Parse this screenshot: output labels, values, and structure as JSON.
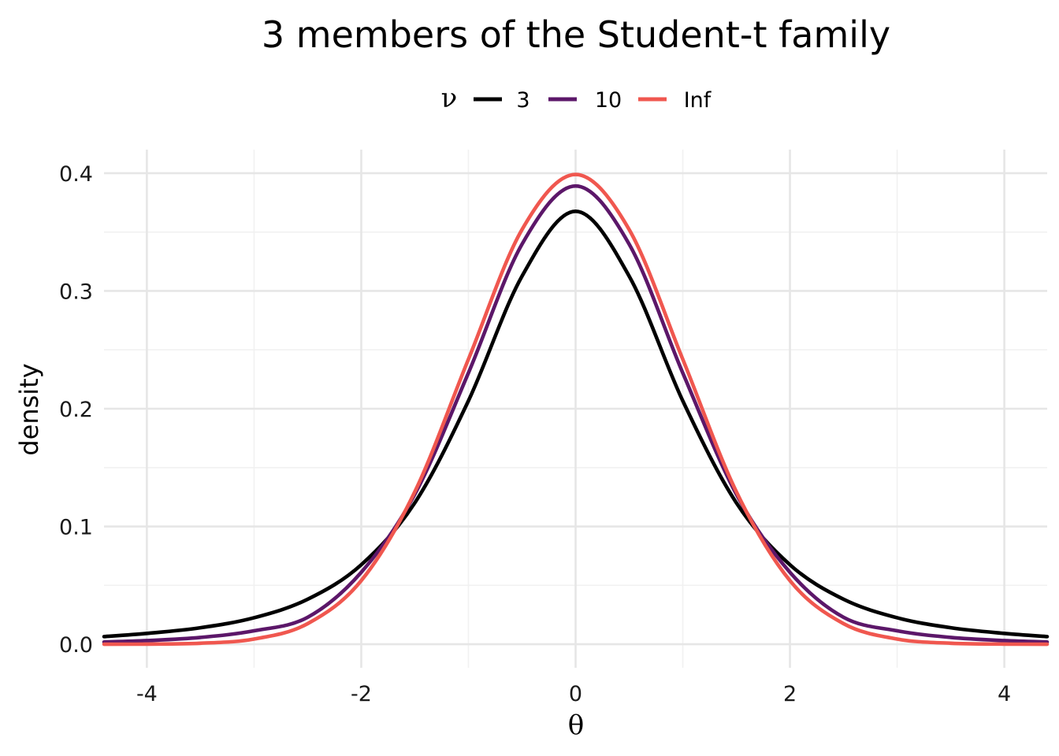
{
  "chart_data": {
    "type": "line",
    "title": "3 members of the Student-t family",
    "xlabel": "θ",
    "ylabel": "density",
    "xlim": [
      -4.4,
      4.4
    ],
    "ylim": [
      -0.02,
      0.42
    ],
    "x_ticks": [
      -4,
      -2,
      0,
      2,
      4
    ],
    "x_tick_labels": [
      "-4",
      "-2",
      "0",
      "2",
      "4"
    ],
    "y_ticks": [
      0.0,
      0.1,
      0.2,
      0.3,
      0.4
    ],
    "y_tick_labels": [
      "0.0",
      "0.1",
      "0.2",
      "0.3",
      "0.4"
    ],
    "grid": true,
    "legend": {
      "title": "ν",
      "placement": "top"
    },
    "series": [
      {
        "name": "3",
        "color": "#000000",
        "x": [
          -4.4,
          -4.0,
          -3.5,
          -3.0,
          -2.5,
          -2.0,
          -1.5,
          -1.0,
          -0.5,
          0.0,
          0.5,
          1.0,
          1.5,
          2.0,
          2.5,
          3.0,
          3.5,
          4.0,
          4.4
        ],
        "values": [
          0.0065,
          0.0092,
          0.014,
          0.0225,
          0.0382,
          0.0675,
          0.1201,
          0.2067,
          0.3125,
          0.3676,
          0.3125,
          0.2067,
          0.1201,
          0.0675,
          0.0382,
          0.0225,
          0.014,
          0.0092,
          0.0065
        ]
      },
      {
        "name": "10",
        "color": "#5c1769",
        "x": [
          -4.4,
          -4.0,
          -3.5,
          -3.0,
          -2.5,
          -2.0,
          -1.5,
          -1.0,
          -0.5,
          0.0,
          0.5,
          1.0,
          1.5,
          2.0,
          2.5,
          3.0,
          3.5,
          4.0,
          4.4
        ],
        "values": [
          0.0019,
          0.0031,
          0.0058,
          0.0114,
          0.0229,
          0.0611,
          0.1274,
          0.2304,
          0.3397,
          0.3891,
          0.3397,
          0.2304,
          0.1274,
          0.0611,
          0.0229,
          0.0114,
          0.0058,
          0.0031,
          0.0019
        ]
      },
      {
        "name": "Inf",
        "color": "#f0574f",
        "x": [
          -4.4,
          -4.0,
          -3.5,
          -3.0,
          -2.5,
          -2.0,
          -1.5,
          -1.0,
          -0.5,
          0.0,
          0.5,
          1.0,
          1.5,
          2.0,
          2.5,
          3.0,
          3.5,
          4.0,
          4.4
        ],
        "values": [
          3e-05,
          0.00013,
          0.00087,
          0.0044,
          0.0175,
          0.054,
          0.1295,
          0.242,
          0.3521,
          0.3989,
          0.3521,
          0.242,
          0.1295,
          0.054,
          0.0175,
          0.0044,
          0.00087,
          0.00013,
          3e-05
        ]
      }
    ]
  }
}
